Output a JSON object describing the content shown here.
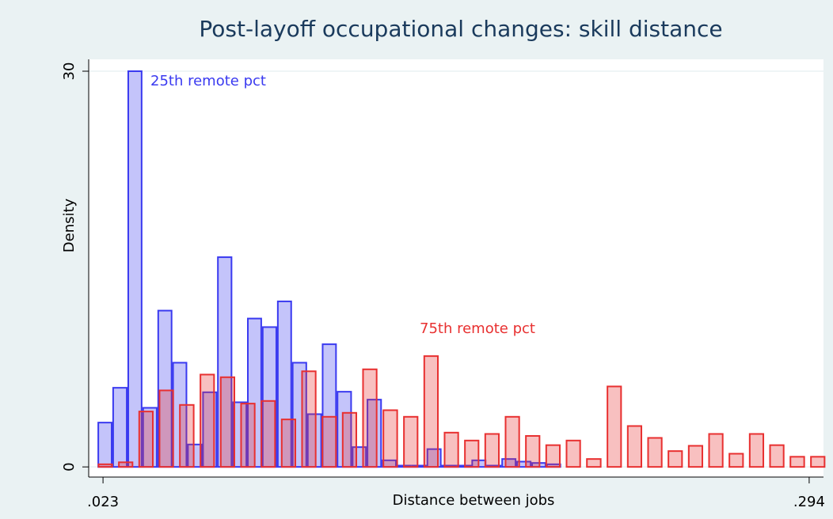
{
  "chart_data": {
    "type": "histogram",
    "title": "Post-layoff occupational changes: skill distance",
    "x_label": "Distance between jobs",
    "y_label": "Density",
    "annotations": [
      "25th remote pct",
      "75th remote pct"
    ],
    "xlim": [
      0.0175,
      0.2995
    ],
    "ylim": [
      -0.77,
      30.9
    ],
    "xticks": [
      {
        "value": 0.023,
        "label": ".023"
      },
      {
        "value": 0.294,
        "label": ".294"
      }
    ],
    "yticks": [
      0,
      30
    ],
    "grid": true,
    "series": [
      {
        "color": "#3a3af0",
        "bins": [
          0.0209,
          0.0266,
          0.0324,
          0.0381,
          0.0439,
          0.0496,
          0.0553,
          0.0611,
          0.0668,
          0.0726,
          0.0783,
          0.084,
          0.0898,
          0.0955,
          0.1013,
          0.107,
          0.1127,
          0.1185,
          0.1242,
          0.13,
          0.1357,
          0.1414,
          0.1472,
          0.1529,
          0.1587,
          0.1644,
          0.1701,
          0.1759,
          0.1816,
          0.1874,
          0.1931,
          0.1988
        ],
        "values": [
          3.36,
          6.0,
          30,
          4.48,
          11.85,
          7.9,
          1.7,
          5.66,
          15.9,
          4.9,
          11.25,
          10.6,
          12.55,
          7.9,
          4.0,
          9.3,
          5.7,
          1.5,
          5.1,
          0.5,
          0.1,
          0.1,
          1.35,
          0.1,
          0.1,
          0.5,
          0.1,
          0.6,
          0.4,
          0.3,
          0.2
        ]
      },
      {
        "color": "#e83030",
        "bins": [
          0.02,
          0.0278,
          0.0356,
          0.0434,
          0.0512,
          0.0591,
          0.0669,
          0.0747,
          0.0825,
          0.0903,
          0.0981,
          0.1059,
          0.1137,
          0.1215,
          0.1293,
          0.1372,
          0.145,
          0.1528,
          0.1606,
          0.1684,
          0.1762,
          0.184,
          0.1918,
          0.1996,
          0.2074,
          0.2153,
          0.2231,
          0.2309,
          0.2387,
          0.2465,
          0.2543,
          0.2621,
          0.2699,
          0.2777,
          0.2855,
          0.2934,
          0.3012
        ],
        "values": [
          0.2,
          0.35,
          4.2,
          5.8,
          4.7,
          7.0,
          6.8,
          4.8,
          5.0,
          3.6,
          7.25,
          3.8,
          4.1,
          7.4,
          4.3,
          3.8,
          8.4,
          2.6,
          2.0,
          2.5,
          3.8,
          2.35,
          1.65,
          2.0,
          0.6,
          6.1,
          3.1,
          2.2,
          1.2,
          1.6,
          2.5,
          1.0,
          2.5,
          1.65,
          0.77,
          0.77
        ]
      }
    ]
  }
}
